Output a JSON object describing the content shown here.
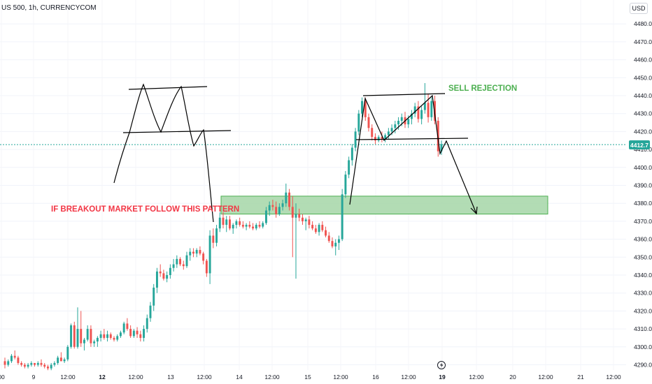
{
  "symbol": "US 500, 1h, CURRENCYCOM",
  "currency": "USD",
  "current_price": "4412.7",
  "annotations": {
    "breakout": "IF BREAKOUT MARKET FOLLOW THIS PATTERN",
    "sell": "SELL REJECTION"
  },
  "colors": {
    "up": "#26a69a",
    "down": "#ef5350",
    "zone_fill": "#a5d6a7",
    "zone_border": "#4caf50",
    "price_line": "#26a69a",
    "drawing": "#000000"
  },
  "chart_data": {
    "type": "candlestick",
    "title": "",
    "ylim": [
      4286,
      4490
    ],
    "y_ticks": [
      4290,
      4300,
      4310,
      4320,
      4330,
      4340,
      4350,
      4360,
      4370,
      4380,
      4390,
      4400,
      4410,
      4420,
      4430,
      4440,
      4450,
      4460,
      4470,
      4480
    ],
    "y_tick_labels": [
      "4290.0",
      "4300.0",
      "4310.0",
      "4320.0",
      "4330.0",
      "4340.0",
      "4350.0",
      "4360.0",
      "4370.0",
      "4380.0",
      "4390.0",
      "4400.0",
      "4410.0",
      "4420.0",
      "4430.0",
      "4440.0",
      "4450.0",
      "4460.0",
      "4470.0",
      "4480.0"
    ],
    "x_ticks": [
      {
        "t": 0,
        "label": "00"
      },
      {
        "t": 1,
        "label": "9"
      },
      {
        "t": 2,
        "label": "12:00"
      },
      {
        "t": 3,
        "label": "12",
        "bold": true
      },
      {
        "t": 4,
        "label": "12:00"
      },
      {
        "t": 5,
        "label": "13"
      },
      {
        "t": 6,
        "label": "12:00"
      },
      {
        "t": 7,
        "label": "14"
      },
      {
        "t": 8,
        "label": "12:00"
      },
      {
        "t": 9,
        "label": "15"
      },
      {
        "t": 10,
        "label": "12:00"
      },
      {
        "t": 11,
        "label": "16"
      },
      {
        "t": 12,
        "label": "12:00"
      },
      {
        "t": 13,
        "label": "19",
        "bold": true
      },
      {
        "t": 14,
        "label": "12:00"
      },
      {
        "t": 15,
        "label": "20"
      },
      {
        "t": 16,
        "label": "12:00"
      },
      {
        "t": 17,
        "label": "21"
      },
      {
        "t": 18,
        "label": "12:00"
      }
    ],
    "ohlc": [
      [
        4292,
        4294,
        4288,
        4290
      ],
      [
        4290,
        4293,
        4289,
        4292
      ],
      [
        4292,
        4296,
        4291,
        4295
      ],
      [
        4295,
        4298,
        4293,
        4294
      ],
      [
        4294,
        4295,
        4290,
        4291
      ],
      [
        4291,
        4292,
        4289,
        4290
      ],
      [
        4290,
        4291,
        4288,
        4289
      ],
      [
        4289,
        4291,
        4288,
        4290
      ],
      [
        4290,
        4292,
        4289,
        4291
      ],
      [
        4291,
        4291,
        4289,
        4290
      ],
      [
        4290,
        4292,
        4289,
        4291
      ],
      [
        4291,
        4293,
        4289,
        4290
      ],
      [
        4290,
        4291,
        4288,
        4289
      ],
      [
        4289,
        4290,
        4287,
        4288
      ],
      [
        4288,
        4291,
        4287,
        4290
      ],
      [
        4290,
        4292,
        4289,
        4291
      ],
      [
        4291,
        4295,
        4290,
        4294
      ],
      [
        4294,
        4297,
        4292,
        4292
      ],
      [
        4292,
        4294,
        4291,
        4293
      ],
      [
        4293,
        4301,
        4292,
        4300
      ],
      [
        4300,
        4313,
        4299,
        4312
      ],
      [
        4312,
        4314,
        4299,
        4300
      ],
      [
        4300,
        4322,
        4299,
        4310
      ],
      [
        4310,
        4320,
        4300,
        4302
      ],
      [
        4302,
        4305,
        4298,
        4304
      ],
      [
        4304,
        4312,
        4303,
        4310
      ],
      [
        4310,
        4312,
        4300,
        4302
      ],
      [
        4302,
        4304,
        4300,
        4303
      ],
      [
        4303,
        4306,
        4300,
        4305
      ],
      [
        4305,
        4309,
        4303,
        4307
      ],
      [
        4307,
        4310,
        4304,
        4305
      ],
      [
        4305,
        4309,
        4303,
        4307
      ],
      [
        4307,
        4308,
        4304,
        4305
      ],
      [
        4305,
        4306,
        4303,
        4304
      ],
      [
        4304,
        4307,
        4303,
        4306
      ],
      [
        4306,
        4309,
        4305,
        4308
      ],
      [
        4308,
        4314,
        4307,
        4313
      ],
      [
        4313,
        4316,
        4309,
        4310
      ],
      [
        4310,
        4312,
        4305,
        4306
      ],
      [
        4306,
        4310,
        4305,
        4309
      ],
      [
        4309,
        4311,
        4305,
        4307
      ],
      [
        4307,
        4309,
        4303,
        4305
      ],
      [
        4305,
        4312,
        4303,
        4310
      ],
      [
        4310,
        4318,
        4308,
        4316
      ],
      [
        4316,
        4325,
        4314,
        4323
      ],
      [
        4323,
        4335,
        4320,
        4333
      ],
      [
        4333,
        4344,
        4330,
        4342
      ],
      [
        4342,
        4346,
        4339,
        4341
      ],
      [
        4341,
        4343,
        4337,
        4338
      ],
      [
        4338,
        4342,
        4336,
        4340
      ],
      [
        4340,
        4346,
        4338,
        4344
      ],
      [
        4344,
        4349,
        4342,
        4346
      ],
      [
        4346,
        4351,
        4344,
        4349
      ],
      [
        4349,
        4350,
        4345,
        4346
      ],
      [
        4346,
        4348,
        4343,
        4345
      ],
      [
        4345,
        4353,
        4344,
        4351
      ],
      [
        4351,
        4355,
        4348,
        4353
      ],
      [
        4353,
        4355,
        4350,
        4352
      ],
      [
        4352,
        4355,
        4350,
        4354
      ],
      [
        4354,
        4356,
        4351,
        4352
      ],
      [
        4352,
        4353,
        4346,
        4348
      ],
      [
        4348,
        4349,
        4339,
        4341
      ],
      [
        4341,
        4365,
        4335,
        4362
      ],
      [
        4362,
        4366,
        4355,
        4358
      ],
      [
        4358,
        4368,
        4356,
        4366
      ],
      [
        4366,
        4375,
        4364,
        4372
      ],
      [
        4372,
        4375,
        4366,
        4368
      ],
      [
        4368,
        4373,
        4364,
        4371
      ],
      [
        4371,
        4373,
        4365,
        4366
      ],
      [
        4366,
        4369,
        4363,
        4368
      ],
      [
        4368,
        4371,
        4366,
        4370
      ],
      [
        4370,
        4372,
        4367,
        4368
      ],
      [
        4368,
        4370,
        4366,
        4367
      ],
      [
        4367,
        4369,
        4365,
        4368
      ],
      [
        4368,
        4370,
        4366,
        4367
      ],
      [
        4367,
        4369,
        4365,
        4366
      ],
      [
        4366,
        4369,
        4365,
        4368
      ],
      [
        4368,
        4370,
        4366,
        4367
      ],
      [
        4367,
        4370,
        4366,
        4369
      ],
      [
        4369,
        4378,
        4368,
        4376
      ],
      [
        4376,
        4381,
        4373,
        4379
      ],
      [
        4379,
        4382,
        4376,
        4378
      ],
      [
        4378,
        4381,
        4372,
        4374
      ],
      [
        4374,
        4380,
        4373,
        4378
      ],
      [
        4378,
        4382,
        4376,
        4380
      ],
      [
        4380,
        4391,
        4378,
        4386
      ],
      [
        4386,
        4388,
        4376,
        4378
      ],
      [
        4378,
        4384,
        4350,
        4372
      ],
      [
        4372,
        4380,
        4338,
        4374
      ],
      [
        4374,
        4377,
        4370,
        4372
      ],
      [
        4372,
        4374,
        4368,
        4370
      ],
      [
        4370,
        4372,
        4365,
        4371
      ],
      [
        4371,
        4373,
        4366,
        4368
      ],
      [
        4368,
        4370,
        4365,
        4366
      ],
      [
        4366,
        4368,
        4363,
        4364
      ],
      [
        4364,
        4369,
        4362,
        4368
      ],
      [
        4368,
        4370,
        4364,
        4365
      ],
      [
        4365,
        4367,
        4361,
        4362
      ],
      [
        4362,
        4364,
        4358,
        4359
      ],
      [
        4359,
        4361,
        4355,
        4356
      ],
      [
        4356,
        4360,
        4351,
        4358
      ],
      [
        4358,
        4362,
        4354,
        4360
      ],
      [
        4360,
        4388,
        4359,
        4385
      ],
      [
        4385,
        4398,
        4383,
        4396
      ],
      [
        4396,
        4406,
        4394,
        4404
      ],
      [
        4404,
        4413,
        4401,
        4411
      ],
      [
        4411,
        4422,
        4409,
        4420
      ],
      [
        4420,
        4432,
        4418,
        4430
      ],
      [
        4430,
        4439,
        4428,
        4437
      ],
      [
        4437,
        4439,
        4426,
        4428
      ],
      [
        4428,
        4430,
        4420,
        4422
      ],
      [
        4422,
        4424,
        4415,
        4417
      ],
      [
        4417,
        4419,
        4413,
        4415
      ],
      [
        4415,
        4418,
        4414,
        4417
      ],
      [
        4417,
        4420,
        4414,
        4416
      ],
      [
        4416,
        4419,
        4414,
        4418
      ],
      [
        4418,
        4422,
        4416,
        4420
      ],
      [
        4420,
        4424,
        4418,
        4422
      ],
      [
        4422,
        4426,
        4419,
        4424
      ],
      [
        4424,
        4428,
        4421,
        4426
      ],
      [
        4426,
        4430,
        4423,
        4428
      ],
      [
        4428,
        4431,
        4422,
        4424
      ],
      [
        4424,
        4429,
        4422,
        4427
      ],
      [
        4427,
        4432,
        4424,
        4430
      ],
      [
        4430,
        4436,
        4428,
        4434
      ],
      [
        4434,
        4437,
        4425,
        4427
      ],
      [
        4427,
        4434,
        4424,
        4432
      ],
      [
        4432,
        4447,
        4430,
        4436
      ],
      [
        4436,
        4441,
        4425,
        4428
      ],
      [
        4428,
        4439,
        4426,
        4437
      ],
      [
        4437,
        4440,
        4424,
        4426
      ],
      [
        4426,
        4428,
        4406,
        4409
      ],
      [
        4409,
        4415,
        4407,
        4413
      ]
    ],
    "zone": {
      "price_low": 4374,
      "price_high": 4384
    },
    "current_price": 4412.7
  }
}
